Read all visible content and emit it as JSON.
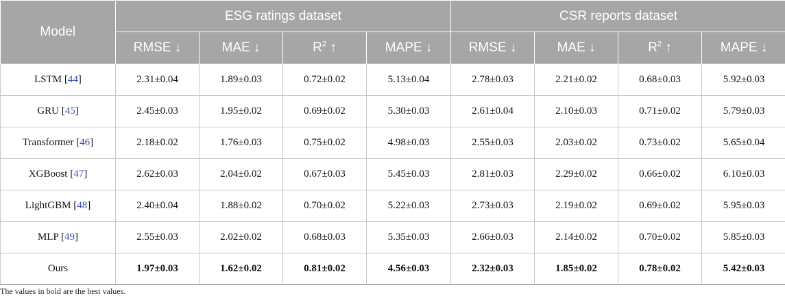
{
  "table": {
    "header": {
      "model": "Model",
      "group1": "ESG ratings dataset",
      "group2": "CSR reports dataset",
      "metrics": [
        {
          "name": "RMSE",
          "sup": "",
          "arrow": " ↓"
        },
        {
          "name": "MAE",
          "sup": "",
          "arrow": " ↓"
        },
        {
          "name": "R",
          "sup": "2",
          "arrow": " ↑"
        },
        {
          "name": "MAPE",
          "sup": "",
          "arrow": " ↓"
        }
      ]
    },
    "rows": [
      {
        "model": "LSTM",
        "ref": "44",
        "values": [
          "2.31±0.04",
          "1.89±0.03",
          "0.72±0.02",
          "5.13±0.04",
          "2.78±0.03",
          "2.21±0.02",
          "0.68±0.03",
          "5.92±0.03"
        ]
      },
      {
        "model": "GRU",
        "ref": "45",
        "values": [
          "2.45±0.03",
          "1.95±0.02",
          "0.69±0.02",
          "5.30±0.03",
          "2.61±0.04",
          "2.10±0.03",
          "0.71±0.02",
          "5.79±0.03"
        ]
      },
      {
        "model": "Transformer",
        "ref": "46",
        "values": [
          "2.18±0.02",
          "1.76±0.03",
          "0.75±0.02",
          "4.98±0.03",
          "2.55±0.03",
          "2.03±0.02",
          "0.73±0.02",
          "5.65±0.04"
        ]
      },
      {
        "model": "XGBoost",
        "ref": "47",
        "values": [
          "2.62±0.03",
          "2.04±0.02",
          "0.67±0.03",
          "5.45±0.03",
          "2.81±0.03",
          "2.29±0.02",
          "0.66±0.02",
          "6.10±0.03"
        ]
      },
      {
        "model": "LightGBM",
        "ref": "48",
        "values": [
          "2.40±0.04",
          "1.88±0.02",
          "0.70±0.02",
          "5.22±0.03",
          "2.73±0.03",
          "2.19±0.02",
          "0.69±0.02",
          "5.95±0.03"
        ]
      },
      {
        "model": "MLP",
        "ref": "49",
        "values": [
          "2.55±0.03",
          "2.02±0.02",
          "0.68±0.03",
          "5.35±0.03",
          "2.66±0.03",
          "2.14±0.02",
          "0.70±0.02",
          "5.85±0.03"
        ]
      },
      {
        "model": "Ours",
        "ref": "",
        "best": true,
        "values": [
          "1.97±0.03",
          "1.62±0.02",
          "0.81±0.02",
          "4.56±0.03",
          "2.32±0.03",
          "1.85±0.02",
          "0.78±0.02",
          "5.42±0.03"
        ]
      }
    ]
  },
  "note": "The values in bold are the best values."
}
